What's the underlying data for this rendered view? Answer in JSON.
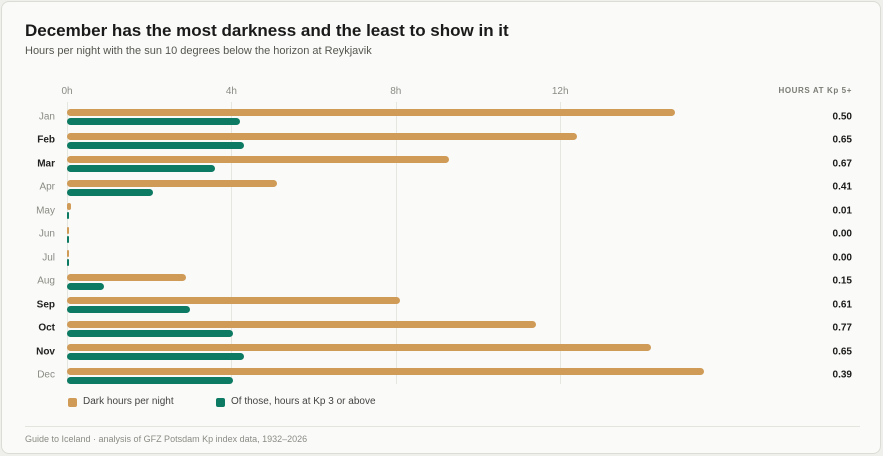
{
  "header": {
    "title": "December has the most darkness and the least to show in it",
    "subtitle": "Hours per night with the sun 10 degrees below the horizon at Reykjavik"
  },
  "value_column_header": "HOURS AT Kp 5+",
  "footer": "Guide to Iceland · analysis of GFZ Potsdam Kp index data, 1932–2026",
  "colors": {
    "dark_hours": "#d09a57",
    "kp3_hours": "#0d7a63"
  },
  "chart_data": {
    "type": "bar",
    "orientation": "horizontal",
    "title": "December has the most darkness and the least to show in it",
    "subtitle": "Hours per night with the sun 10 degrees below the horizon at Reykjavik",
    "xlim": [
      0,
      19
    ],
    "x_ticks": [
      0,
      4,
      8,
      12
    ],
    "x_tick_labels": [
      "0h",
      "4h",
      "8h",
      "12h"
    ],
    "grid": true,
    "legend_position": "bottom-left",
    "categories": [
      "Jan",
      "Feb",
      "Mar",
      "Apr",
      "May",
      "Jun",
      "Jul",
      "Aug",
      "Sep",
      "Oct",
      "Nov",
      "Dec"
    ],
    "bold_categories": [
      "Feb",
      "Mar",
      "Sep",
      "Oct",
      "Nov"
    ],
    "series": [
      {
        "name": "Dark hours per night",
        "color": "#d09a57",
        "values": [
          14.8,
          12.4,
          9.3,
          5.1,
          0.1,
          0.05,
          0.05,
          2.9,
          8.1,
          11.4,
          14.2,
          15.5
        ]
      },
      {
        "name": "Of those, hours at Kp 3 or above",
        "color": "#0d7a63",
        "values": [
          4.2,
          4.3,
          3.6,
          2.1,
          0.05,
          0.03,
          0.03,
          0.9,
          3.0,
          4.05,
          4.3,
          4.05
        ]
      }
    ],
    "kp5_hours": [
      "0.50",
      "0.65",
      "0.67",
      "0.41",
      "0.01",
      "0.00",
      "0.00",
      "0.15",
      "0.61",
      "0.77",
      "0.65",
      "0.39"
    ]
  }
}
